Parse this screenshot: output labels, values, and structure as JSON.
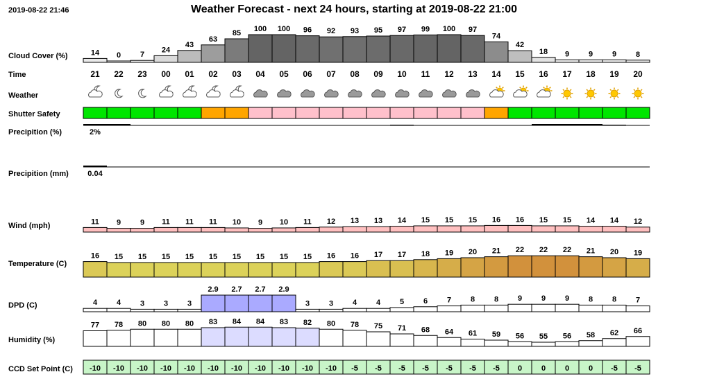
{
  "timestamp": "2019-08-22 21:46",
  "title": "Weather Forecast - next 24 hours, starting at 2019-08-22 21:00",
  "chart_data": {
    "type": "bar",
    "hours": [
      "21",
      "22",
      "23",
      "00",
      "01",
      "02",
      "03",
      "04",
      "05",
      "06",
      "07",
      "08",
      "09",
      "10",
      "11",
      "12",
      "13",
      "14",
      "15",
      "16",
      "17",
      "18",
      "19",
      "20"
    ],
    "row_labels": {
      "cloud": "Cloud Cover (%)",
      "time": "Time",
      "weather": "Weather",
      "shutter": "Shutter Safety",
      "precip_pct": "Precipition (%)",
      "precip_mm": "Precipition (mm)",
      "wind": "Wind (mph)",
      "temp": "Temperature (C)",
      "dpd": "DPD (C)",
      "humidity": "Humidity (%)",
      "ccd": "CCD Set Point (C)"
    },
    "cloud_cover": [
      14,
      0,
      7,
      24,
      43,
      63,
      85,
      100,
      100,
      96,
      92,
      93,
      95,
      97,
      99,
      100,
      97,
      74,
      42,
      18,
      9,
      9,
      9,
      8
    ],
    "weather_icons": [
      "partly-cloudy-night",
      "clear-night",
      "clear-night",
      "partly-cloudy-night",
      "partly-cloudy-night",
      "partly-cloudy-night",
      "partly-cloudy-night",
      "cloudy",
      "cloudy",
      "cloudy",
      "cloudy",
      "cloudy",
      "cloudy",
      "cloudy",
      "cloudy",
      "cloudy",
      "cloudy",
      "partly-cloudy-day",
      "partly-cloudy-day",
      "partly-cloudy-day",
      "sunny",
      "sunny",
      "sunny",
      "sunny"
    ],
    "shutter_safety": [
      "safe",
      "safe",
      "safe",
      "safe",
      "safe",
      "caution",
      "caution",
      "unsafe",
      "unsafe",
      "unsafe",
      "unsafe",
      "unsafe",
      "unsafe",
      "unsafe",
      "unsafe",
      "unsafe",
      "unsafe",
      "caution",
      "safe",
      "safe",
      "safe",
      "safe",
      "safe",
      "safe"
    ],
    "precip_pct": [
      2,
      2,
      0,
      0,
      0,
      0,
      0,
      0,
      0,
      0,
      0,
      0,
      0,
      1,
      0,
      0,
      0,
      0,
      0,
      2,
      2,
      2,
      1,
      0
    ],
    "precip_pct_labels": [
      "2%",
      "",
      "",
      "",
      "",
      "",
      "",
      "",
      "",
      "",
      "",
      "",
      "",
      "",
      "",
      "",
      "",
      "",
      "",
      "",
      "",
      "",
      "",
      ""
    ],
    "precip_mm": [
      0.04,
      0,
      0,
      0,
      0,
      0,
      0,
      0,
      0,
      0,
      0,
      0,
      0,
      0,
      0,
      0,
      0,
      0,
      0,
      0,
      0,
      0,
      0,
      0
    ],
    "precip_mm_labels": [
      "0.04",
      "",
      "",
      "",
      "",
      "",
      "",
      "",
      "",
      "",
      "",
      "",
      "",
      "",
      "",
      "",
      "",
      "",
      "",
      "",
      "",
      "",
      "",
      ""
    ],
    "wind": [
      11,
      9,
      9,
      11,
      11,
      11,
      10,
      9,
      10,
      11,
      12,
      13,
      13,
      14,
      15,
      15,
      15,
      16,
      16,
      15,
      15,
      14,
      14,
      12
    ],
    "temperature": [
      16,
      15,
      15,
      15,
      15,
      15,
      15,
      15,
      15,
      15,
      16,
      16,
      17,
      17,
      18,
      19,
      20,
      21,
      22,
      22,
      22,
      21,
      20,
      19
    ],
    "dpd": [
      "4",
      "4",
      "3",
      "3",
      "3",
      "2.9",
      "2.7",
      "2.7",
      "2.9",
      "3",
      "3",
      "4",
      "4",
      "5",
      "6",
      "7",
      "8",
      "8",
      "9",
      "9",
      "9",
      "8",
      "8",
      "7"
    ],
    "humidity": [
      77,
      78,
      80,
      80,
      80,
      83,
      84,
      84,
      83,
      82,
      80,
      78,
      75,
      71,
      68,
      64,
      61,
      59,
      56,
      55,
      56,
      58,
      62,
      66
    ],
    "ccd_set_point": [
      "-10",
      "-10",
      "-10",
      "-10",
      "-10",
      "-10",
      "-10",
      "-10",
      "-10",
      "-10",
      "-10",
      "-5",
      "-5",
      "-5",
      "-5",
      "-5",
      "-5",
      "-5",
      "0",
      "0",
      "0",
      "0",
      "-5",
      "-5"
    ],
    "colors": {
      "safe": "#00e600",
      "caution": "#ffa500",
      "unsafe": "#ffc0cb",
      "wind": "#ffc0c0",
      "dpd_low": "#aaaaff",
      "humidity_high": "#dcdcff",
      "ccd": "#c8f5c8",
      "sun": "#ffc800"
    }
  }
}
